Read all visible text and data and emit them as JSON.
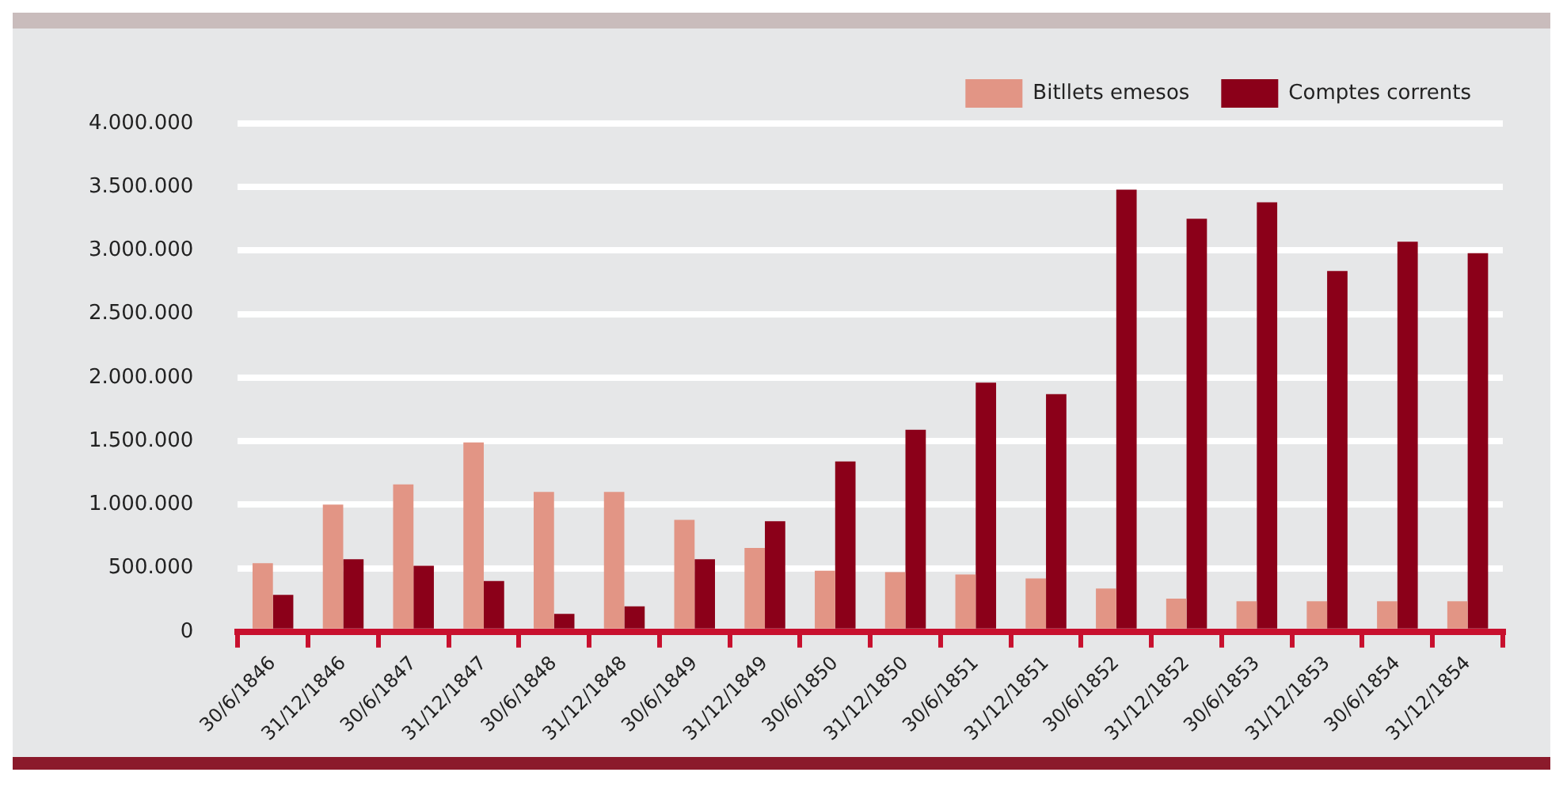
{
  "chart_data": {
    "type": "bar",
    "categories": [
      "30/6/1846",
      "31/12/1846",
      "30/6/1847",
      "31/12/1847",
      "30/6/1848",
      "31/12/1848",
      "30/6/1849",
      "31/12/1849",
      "30/6/1850",
      "31/12/1850",
      "30/6/1851",
      "31/12/1851",
      "30/6/1852",
      "31/12/1852",
      "30/6/1853",
      "31/12/1853",
      "30/6/1854",
      "31/12/1854"
    ],
    "series": [
      {
        "name": "Bitllets emesos",
        "color": "#e29585",
        "values": [
          540000,
          1000000,
          1160000,
          1490000,
          1100000,
          1100000,
          880000,
          660000,
          480000,
          470000,
          450000,
          420000,
          340000,
          260000,
          240000,
          240000,
          240000,
          240000
        ]
      },
      {
        "name": "Comptes corrents",
        "color": "#8b0019",
        "values": [
          290000,
          570000,
          520000,
          400000,
          140000,
          200000,
          570000,
          870000,
          1340000,
          1590000,
          1960000,
          1870000,
          3480000,
          3250000,
          3380000,
          2840000,
          3070000,
          2980000
        ]
      }
    ],
    "ylim": [
      0,
      4000000
    ],
    "yticks": [
      0,
      {
        "value": 500000,
        "label": "500.000"
      },
      {
        "value": 1000000,
        "label": "1.000.000"
      },
      {
        "value": 1500000,
        "label": "1.500.000"
      },
      {
        "value": 2000000,
        "label": "2.000.000"
      },
      {
        "value": 2500000,
        "label": "2.500.000"
      },
      {
        "value": 3000000,
        "label": "3.000.000"
      },
      {
        "value": 3500000,
        "label": "3.500.000"
      },
      {
        "value": 4000000,
        "label": "4.000.000"
      }
    ],
    "grid": "y",
    "legend": "top right"
  }
}
